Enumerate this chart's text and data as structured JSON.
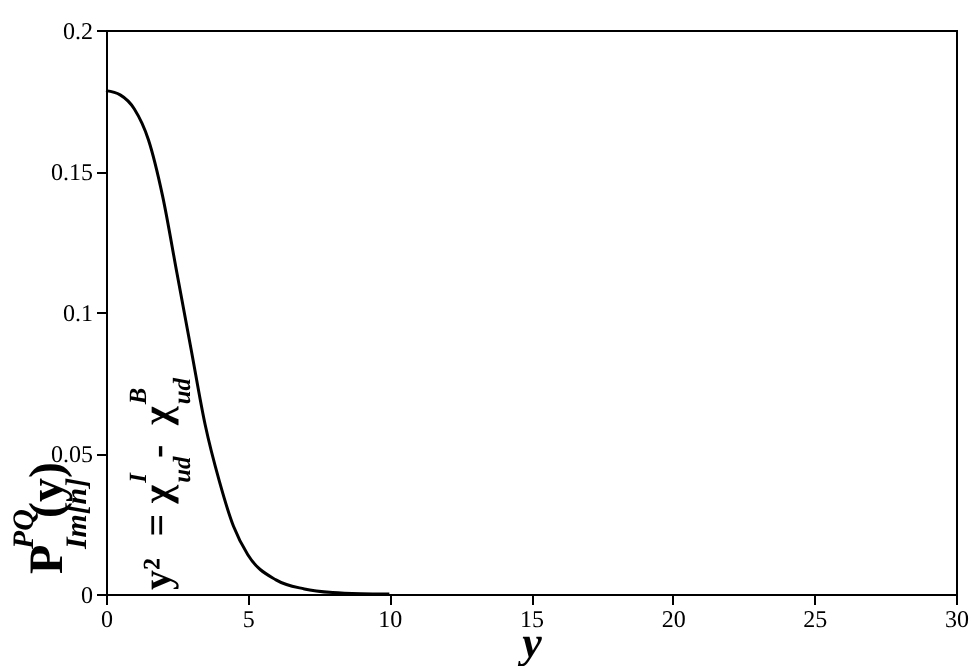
{
  "chart_data": {
    "type": "line",
    "xlabel": "y",
    "ylabel": "P$_{Im[n]}$$^{PQ}$(y)",
    "x": [
      0,
      0.5,
      1,
      1.5,
      2,
      2.5,
      3,
      3.5,
      4,
      4.5,
      5,
      6,
      7,
      8,
      9,
      10
    ],
    "series": [
      {
        "color": "#000000",
        "values": [
          0.1785,
          0.177,
          0.172,
          0.161,
          0.141,
          0.114,
          0.087,
          0.06,
          0.04,
          0.024,
          0.014,
          0.005,
          0.0018,
          0.0005,
          0.0001,
          0
        ]
      }
    ],
    "xlim": [
      0,
      30
    ],
    "xticks": [
      0,
      5,
      10,
      15,
      20,
      25,
      30
    ],
    "ylim": [
      0,
      0.2
    ],
    "yticks": [
      0,
      0.05,
      0.1,
      0.15,
      0.2
    ],
    "annotations": [
      "y² = χ$_{ud}$$^{I}$ - χ$_{ud}$$^{B}$"
    ],
    "grid": false,
    "marker": "none",
    "line_style": "solid"
  }
}
